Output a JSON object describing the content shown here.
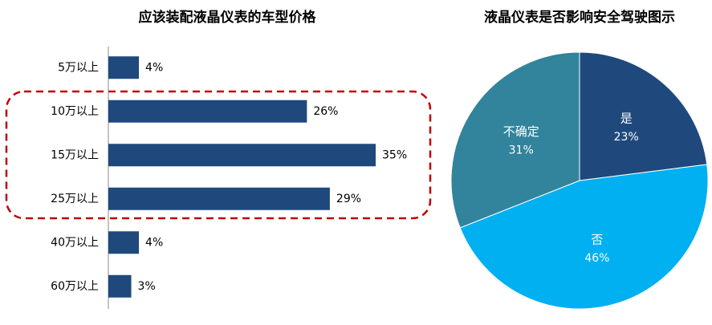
{
  "chart_data": [
    {
      "type": "bar",
      "orientation": "horizontal",
      "title": "应该装配液晶仪表的车型价格",
      "categories": [
        "5万以上",
        "10万以上",
        "15万以上",
        "25万以上",
        "40万以上",
        "60万以上"
      ],
      "values": [
        4,
        26,
        35,
        29,
        4,
        3
      ],
      "value_labels": [
        "4%",
        "26%",
        "35%",
        "29%",
        "4%",
        "3%"
      ],
      "color": "#1f497d"
    },
    {
      "type": "pie",
      "title": "液晶仪表是否影响安全驾驶图示",
      "categories": [
        "是",
        "否",
        "不确定"
      ],
      "values": [
        23,
        46,
        31
      ],
      "value_labels": [
        "23%",
        "46%",
        "31%"
      ],
      "colors": [
        "#1f497d",
        "#00b0f0",
        "#31849b"
      ]
    }
  ]
}
